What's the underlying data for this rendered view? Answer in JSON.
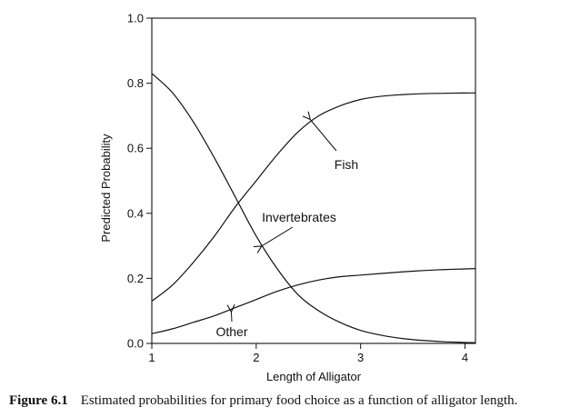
{
  "chart_data": {
    "type": "line",
    "xlabel": "Length of Alligator",
    "ylabel": "Predicted Probability",
    "xlim": [
      1,
      4.1
    ],
    "ylim": [
      0,
      1.0
    ],
    "x_ticks": [
      "1",
      "2",
      "3",
      "4"
    ],
    "y_ticks": [
      "0.0",
      "0.2",
      "0.4",
      "0.6",
      "0.8",
      "1.0"
    ],
    "grid": false,
    "legend": "none",
    "series": [
      {
        "name": "Fish",
        "x": [
          1.0,
          1.2,
          1.4,
          1.6,
          1.8,
          2.0,
          2.2,
          2.4,
          2.6,
          2.8,
          3.0,
          3.2,
          3.4,
          3.6,
          3.8,
          4.0,
          4.1
        ],
        "values": [
          0.13,
          0.18,
          0.25,
          0.33,
          0.42,
          0.5,
          0.58,
          0.65,
          0.7,
          0.73,
          0.75,
          0.76,
          0.765,
          0.768,
          0.769,
          0.77,
          0.77
        ]
      },
      {
        "name": "Invertebrates",
        "x": [
          1.0,
          1.2,
          1.4,
          1.6,
          1.8,
          2.0,
          2.2,
          2.4,
          2.6,
          2.8,
          3.0,
          3.2,
          3.4,
          3.6,
          3.8,
          4.0,
          4.1
        ],
        "values": [
          0.83,
          0.77,
          0.68,
          0.57,
          0.45,
          0.33,
          0.23,
          0.15,
          0.1,
          0.065,
          0.04,
          0.025,
          0.015,
          0.009,
          0.005,
          0.003,
          0.002
        ]
      },
      {
        "name": "Other",
        "x": [
          1.0,
          1.2,
          1.4,
          1.6,
          1.8,
          2.0,
          2.2,
          2.4,
          2.6,
          2.8,
          3.0,
          3.2,
          3.4,
          3.6,
          3.8,
          4.0,
          4.1
        ],
        "values": [
          0.03,
          0.045,
          0.065,
          0.085,
          0.11,
          0.135,
          0.16,
          0.18,
          0.195,
          0.205,
          0.21,
          0.215,
          0.22,
          0.224,
          0.227,
          0.229,
          0.23
        ]
      }
    ],
    "annotations": [
      {
        "text": "Fish",
        "target_x": 2.5,
        "target_y": 0.695
      },
      {
        "text": "Invertebrates",
        "target_x": 2.03,
        "target_y": 0.295
      },
      {
        "text": "Other",
        "target_x": 1.76,
        "target_y": 0.105
      }
    ]
  },
  "caption": {
    "label": "Figure 6.1",
    "text": "Estimated probabilities for primary food choice as a function of alligator length."
  }
}
